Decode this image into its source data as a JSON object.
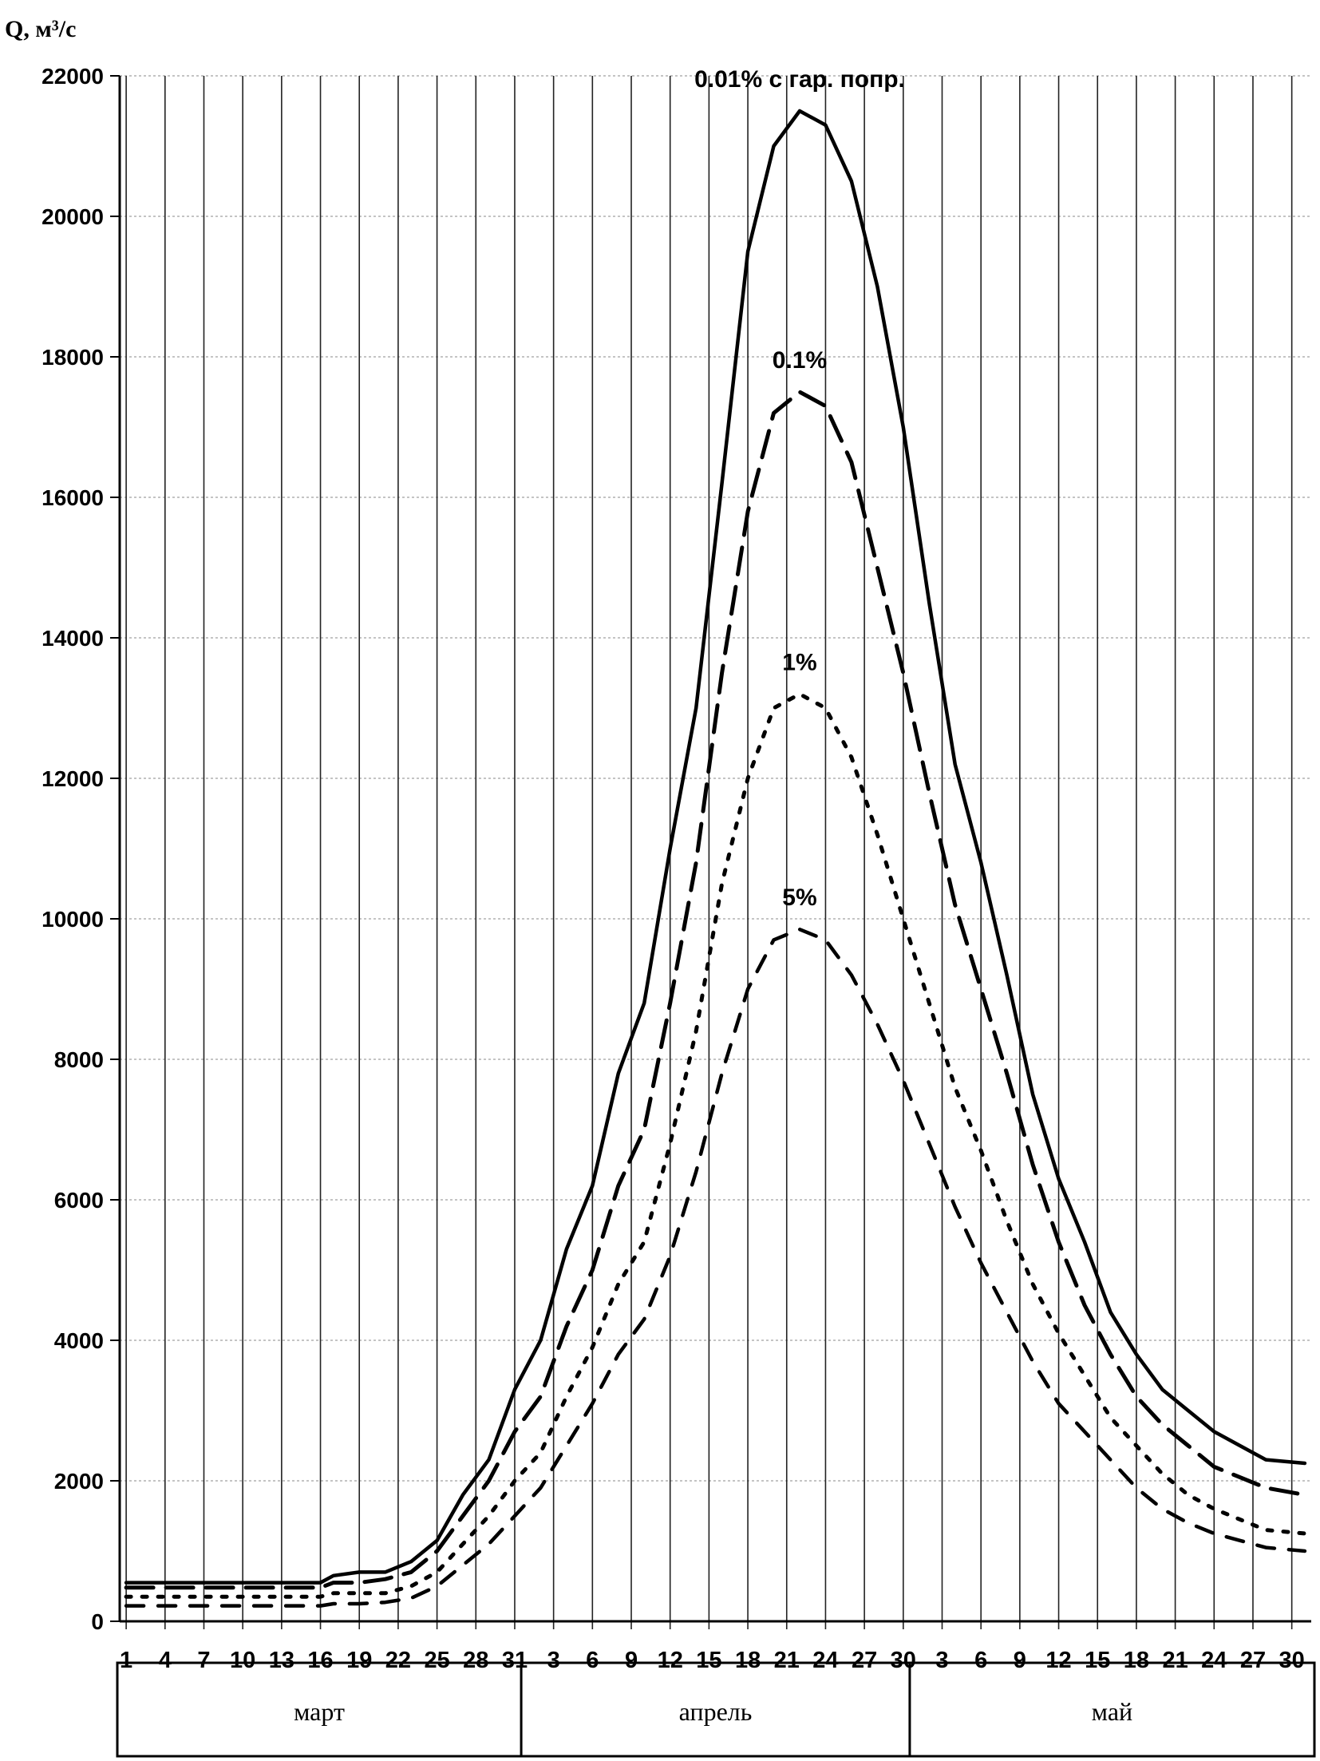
{
  "chart_data": {
    "type": "line",
    "ylabel": "Q, м³/с",
    "ylim": [
      0,
      22000
    ],
    "yticks": [
      0,
      2000,
      4000,
      6000,
      8000,
      10000,
      12000,
      14000,
      16000,
      18000,
      20000,
      22000
    ],
    "grid": true,
    "x_day_labels": [
      "1",
      "4",
      "7",
      "10",
      "13",
      "16",
      "19",
      "22",
      "25",
      "28",
      "31",
      "3",
      "6",
      "9",
      "12",
      "15",
      "18",
      "21",
      "24",
      "27",
      "30",
      "3",
      "6",
      "9",
      "12",
      "15",
      "18",
      "21",
      "24",
      "27",
      "30"
    ],
    "months": [
      "март",
      "апрель",
      "май"
    ],
    "series": [
      {
        "name": "0.01% с гар. попр.",
        "style": "solid",
        "points": [
          [
            "03-01",
            550
          ],
          [
            "03-16",
            550
          ],
          [
            "03-17",
            650
          ],
          [
            "03-19",
            700
          ],
          [
            "03-21",
            700
          ],
          [
            "03-23",
            850
          ],
          [
            "03-25",
            1150
          ],
          [
            "03-27",
            1800
          ],
          [
            "03-29",
            2300
          ],
          [
            "03-31",
            3300
          ],
          [
            "04-02",
            4000
          ],
          [
            "04-04",
            5300
          ],
          [
            "04-06",
            6200
          ],
          [
            "04-08",
            7800
          ],
          [
            "04-10",
            8800
          ],
          [
            "04-12",
            11000
          ],
          [
            "04-14",
            13000
          ],
          [
            "04-16",
            16200
          ],
          [
            "04-18",
            19500
          ],
          [
            "04-20",
            21000
          ],
          [
            "04-22",
            21500
          ],
          [
            "04-24",
            21300
          ],
          [
            "04-26",
            20500
          ],
          [
            "04-28",
            19000
          ],
          [
            "04-30",
            17000
          ],
          [
            "05-02",
            14500
          ],
          [
            "05-04",
            12200
          ],
          [
            "05-06",
            10800
          ],
          [
            "05-08",
            9200
          ],
          [
            "05-10",
            7500
          ],
          [
            "05-12",
            6300
          ],
          [
            "05-14",
            5400
          ],
          [
            "05-16",
            4400
          ],
          [
            "05-18",
            3800
          ],
          [
            "05-20",
            3300
          ],
          [
            "05-22",
            3000
          ],
          [
            "05-24",
            2700
          ],
          [
            "05-26",
            2500
          ],
          [
            "05-28",
            2300
          ],
          [
            "05-31",
            2250
          ]
        ]
      },
      {
        "name": "0.1%",
        "style": "long-dash",
        "points": [
          [
            "03-01",
            480
          ],
          [
            "03-16",
            480
          ],
          [
            "03-17",
            550
          ],
          [
            "03-19",
            550
          ],
          [
            "03-21",
            600
          ],
          [
            "03-23",
            700
          ],
          [
            "03-25",
            1000
          ],
          [
            "03-27",
            1500
          ],
          [
            "03-29",
            2000
          ],
          [
            "03-31",
            2700
          ],
          [
            "04-02",
            3200
          ],
          [
            "04-04",
            4200
          ],
          [
            "04-06",
            5000
          ],
          [
            "04-08",
            6200
          ],
          [
            "04-10",
            7000
          ],
          [
            "04-12",
            8800
          ],
          [
            "04-14",
            10800
          ],
          [
            "04-16",
            13500
          ],
          [
            "04-18",
            15800
          ],
          [
            "04-20",
            17200
          ],
          [
            "04-22",
            17500
          ],
          [
            "04-24",
            17300
          ],
          [
            "04-26",
            16500
          ],
          [
            "04-28",
            15000
          ],
          [
            "04-30",
            13500
          ],
          [
            "05-02",
            11800
          ],
          [
            "05-04",
            10200
          ],
          [
            "05-06",
            9000
          ],
          [
            "05-08",
            7800
          ],
          [
            "05-10",
            6500
          ],
          [
            "05-12",
            5400
          ],
          [
            "05-14",
            4500
          ],
          [
            "05-16",
            3800
          ],
          [
            "05-18",
            3200
          ],
          [
            "05-20",
            2800
          ],
          [
            "05-22",
            2500
          ],
          [
            "05-24",
            2200
          ],
          [
            "05-26",
            2050
          ],
          [
            "05-28",
            1900
          ],
          [
            "05-31",
            1800
          ]
        ]
      },
      {
        "name": "1%",
        "style": "dotted",
        "points": [
          [
            "03-01",
            350
          ],
          [
            "03-16",
            350
          ],
          [
            "03-17",
            400
          ],
          [
            "03-19",
            400
          ],
          [
            "03-21",
            400
          ],
          [
            "03-23",
            500
          ],
          [
            "03-25",
            700
          ],
          [
            "03-27",
            1100
          ],
          [
            "03-29",
            1500
          ],
          [
            "03-31",
            2000
          ],
          [
            "04-02",
            2400
          ],
          [
            "04-04",
            3200
          ],
          [
            "04-06",
            3900
          ],
          [
            "04-08",
            4800
          ],
          [
            "04-10",
            5400
          ],
          [
            "04-12",
            6800
          ],
          [
            "04-14",
            8400
          ],
          [
            "04-16",
            10500
          ],
          [
            "04-18",
            12000
          ],
          [
            "04-20",
            13000
          ],
          [
            "04-22",
            13200
          ],
          [
            "04-24",
            13000
          ],
          [
            "04-26",
            12300
          ],
          [
            "04-28",
            11200
          ],
          [
            "04-30",
            10000
          ],
          [
            "05-02",
            8800
          ],
          [
            "05-04",
            7600
          ],
          [
            "05-06",
            6700
          ],
          [
            "05-08",
            5700
          ],
          [
            "05-10",
            4800
          ],
          [
            "05-12",
            4100
          ],
          [
            "05-14",
            3500
          ],
          [
            "05-16",
            2900
          ],
          [
            "05-18",
            2500
          ],
          [
            "05-20",
            2100
          ],
          [
            "05-22",
            1800
          ],
          [
            "05-24",
            1600
          ],
          [
            "05-26",
            1450
          ],
          [
            "05-28",
            1300
          ],
          [
            "05-31",
            1250
          ]
        ]
      },
      {
        "name": "5%",
        "style": "dashed",
        "points": [
          [
            "03-01",
            220
          ],
          [
            "03-16",
            220
          ],
          [
            "03-17",
            250
          ],
          [
            "03-19",
            250
          ],
          [
            "03-21",
            270
          ],
          [
            "03-23",
            330
          ],
          [
            "03-25",
            500
          ],
          [
            "03-27",
            800
          ],
          [
            "03-29",
            1100
          ],
          [
            "03-31",
            1500
          ],
          [
            "04-02",
            1900
          ],
          [
            "04-04",
            2500
          ],
          [
            "04-06",
            3100
          ],
          [
            "04-08",
            3800
          ],
          [
            "04-10",
            4300
          ],
          [
            "04-12",
            5200
          ],
          [
            "04-14",
            6400
          ],
          [
            "04-16",
            7800
          ],
          [
            "04-18",
            9000
          ],
          [
            "04-20",
            9700
          ],
          [
            "04-22",
            9850
          ],
          [
            "04-24",
            9700
          ],
          [
            "04-26",
            9200
          ],
          [
            "04-28",
            8500
          ],
          [
            "04-30",
            7700
          ],
          [
            "05-02",
            6800
          ],
          [
            "05-04",
            5900
          ],
          [
            "05-06",
            5100
          ],
          [
            "05-08",
            4400
          ],
          [
            "05-10",
            3700
          ],
          [
            "05-12",
            3100
          ],
          [
            "05-14",
            2700
          ],
          [
            "05-16",
            2300
          ],
          [
            "05-18",
            1900
          ],
          [
            "05-20",
            1600
          ],
          [
            "05-22",
            1400
          ],
          [
            "05-24",
            1250
          ],
          [
            "05-26",
            1150
          ],
          [
            "05-28",
            1050
          ],
          [
            "05-31",
            1000
          ]
        ]
      }
    ]
  }
}
